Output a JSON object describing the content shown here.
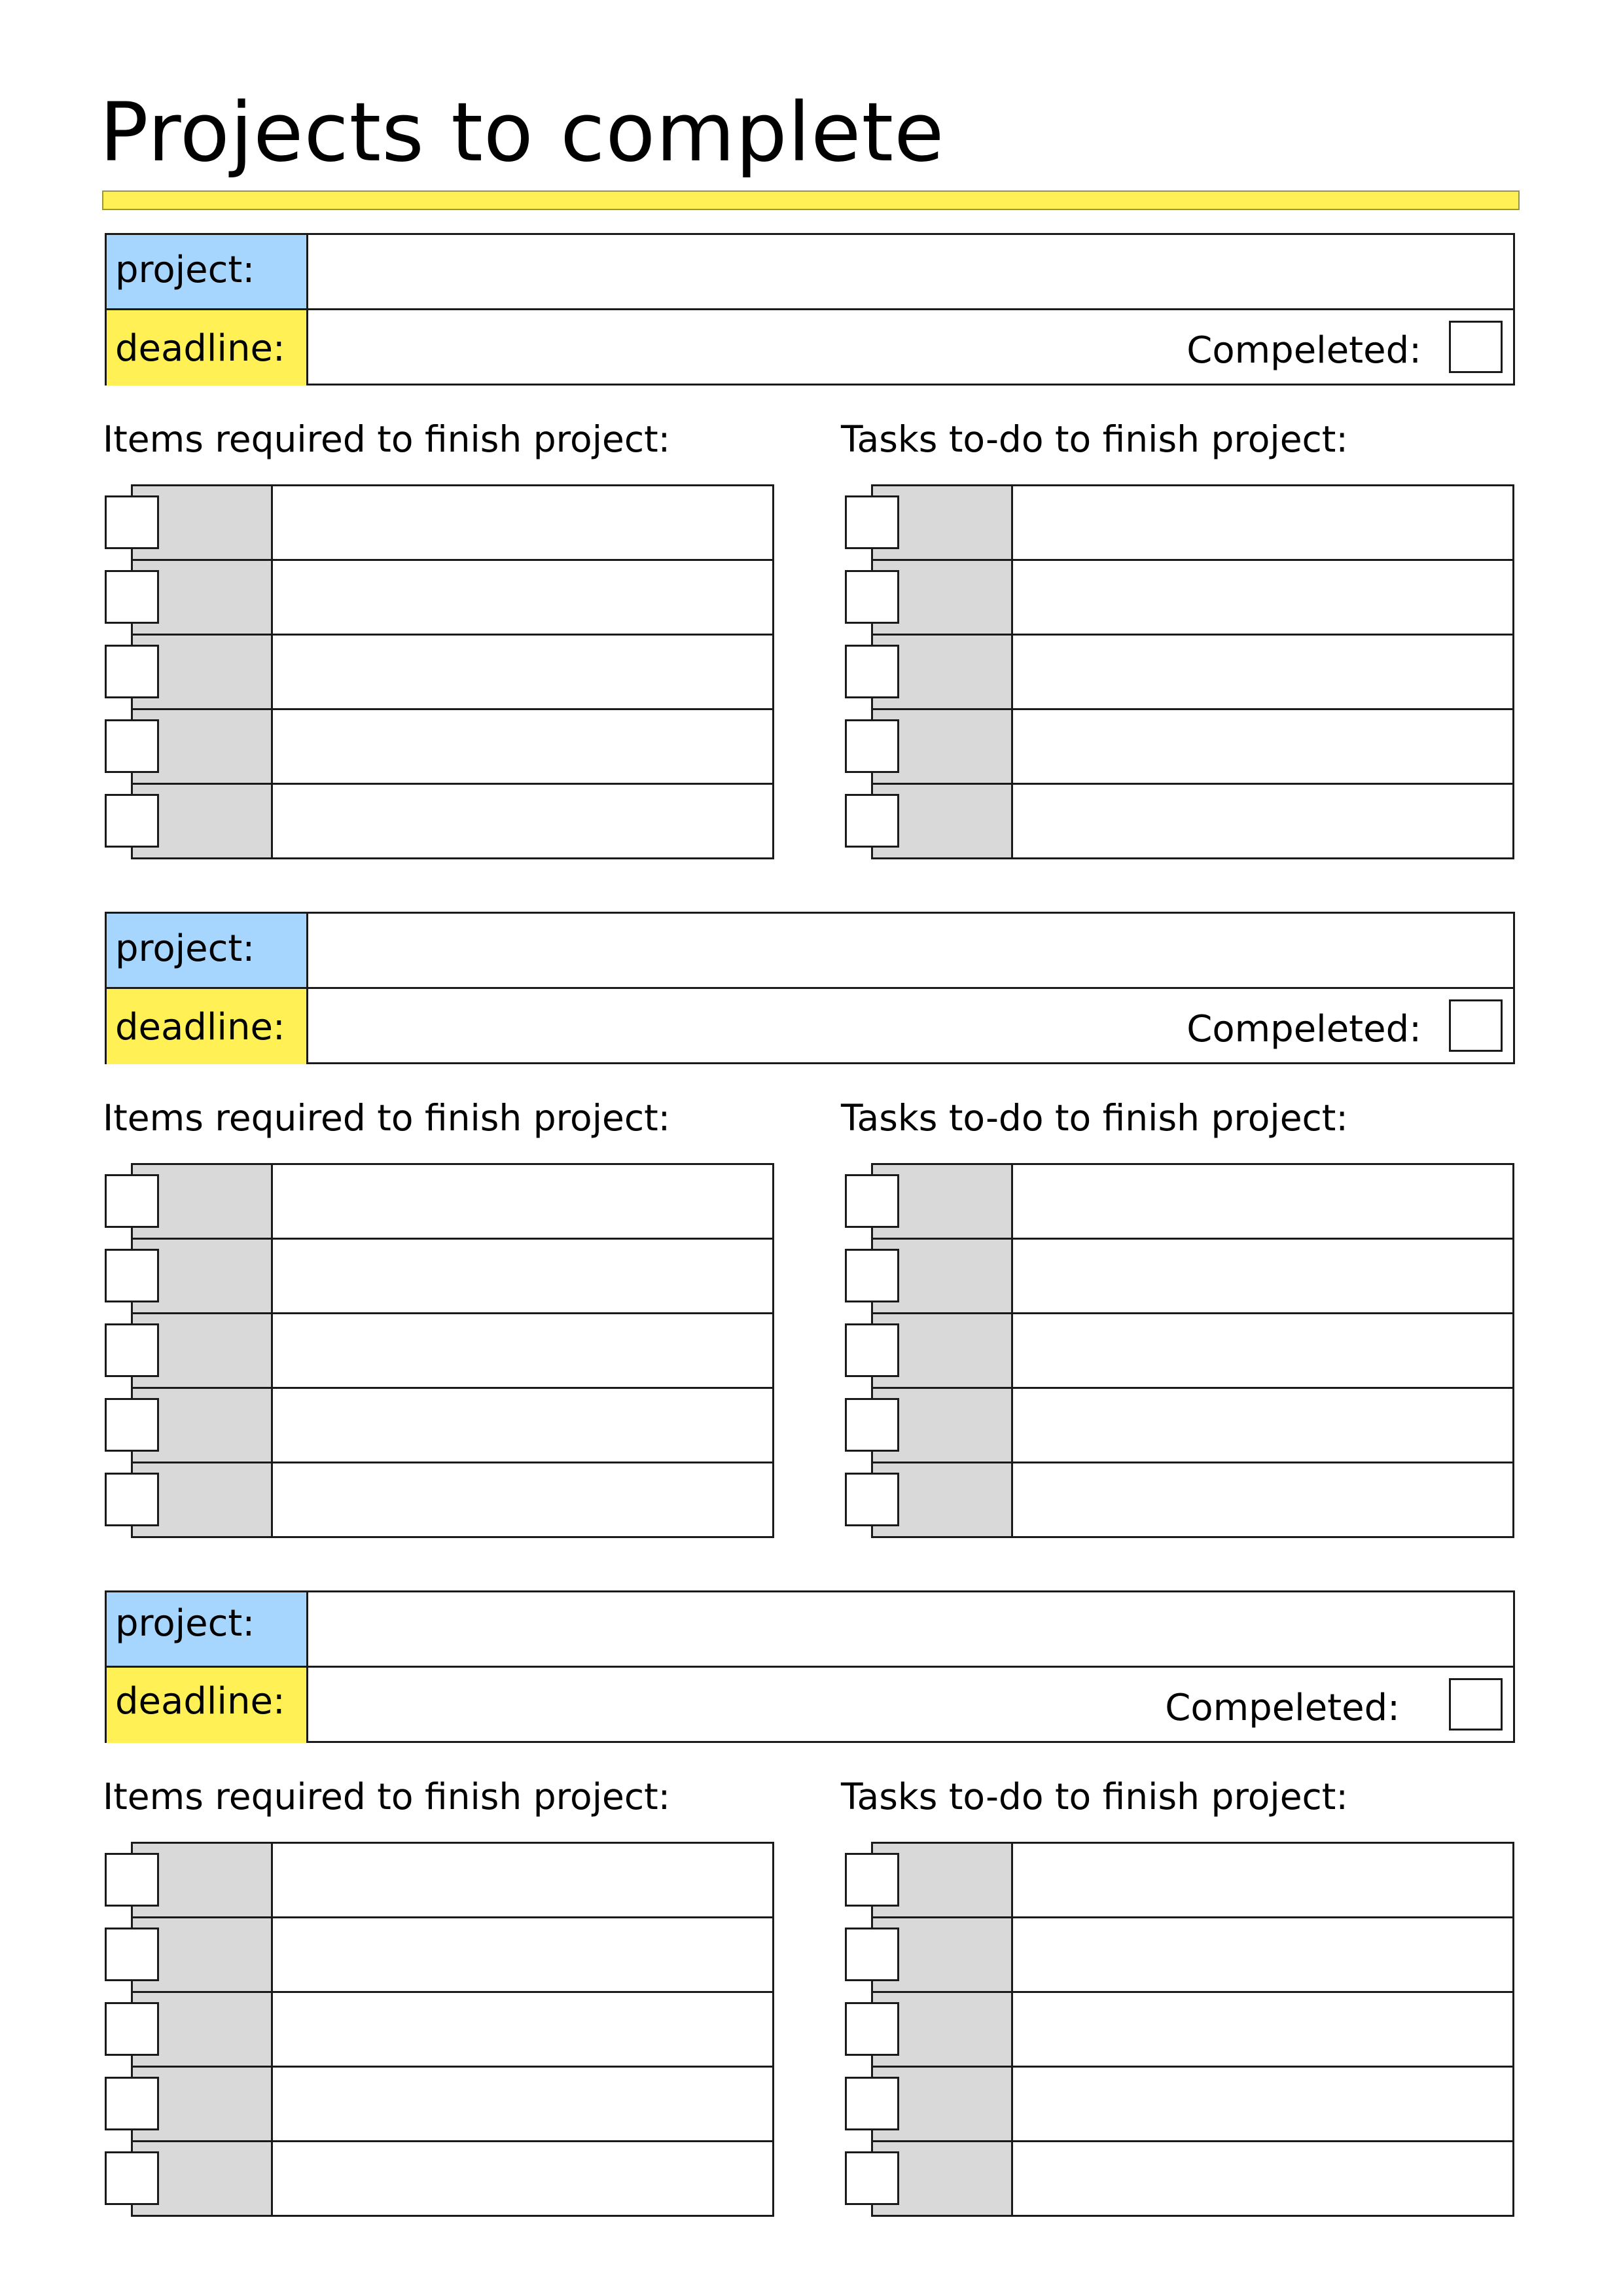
{
  "title": "Projects to complete",
  "colors": {
    "title_bar": "#fff056",
    "project_label_bg": "#a6d6fe",
    "deadline_label_bg": "#fff056",
    "list_gray": "#d9d9d9",
    "border": "#1a1a1a"
  },
  "blocks": [
    {
      "project_label": "project:",
      "project_value": "",
      "deadline_label": "deadline:",
      "deadline_value": "",
      "completed_label": "Compeleted:",
      "completed_checked": false,
      "items_heading": "Items required to finish project:",
      "tasks_heading": "Tasks to-do to finish project:",
      "items": [
        {
          "checked": false,
          "text": ""
        },
        {
          "checked": false,
          "text": ""
        },
        {
          "checked": false,
          "text": ""
        },
        {
          "checked": false,
          "text": ""
        },
        {
          "checked": false,
          "text": ""
        }
      ],
      "tasks": [
        {
          "checked": false,
          "text": ""
        },
        {
          "checked": false,
          "text": ""
        },
        {
          "checked": false,
          "text": ""
        },
        {
          "checked": false,
          "text": ""
        },
        {
          "checked": false,
          "text": ""
        }
      ]
    },
    {
      "project_label": "project:",
      "project_value": "",
      "deadline_label": "deadline:",
      "deadline_value": "",
      "completed_label": "Compeleted:",
      "completed_checked": false,
      "items_heading": "Items required to finish project:",
      "tasks_heading": "Tasks to-do to finish project:",
      "items": [
        {
          "checked": false,
          "text": ""
        },
        {
          "checked": false,
          "text": ""
        },
        {
          "checked": false,
          "text": ""
        },
        {
          "checked": false,
          "text": ""
        },
        {
          "checked": false,
          "text": ""
        }
      ],
      "tasks": [
        {
          "checked": false,
          "text": ""
        },
        {
          "checked": false,
          "text": ""
        },
        {
          "checked": false,
          "text": ""
        },
        {
          "checked": false,
          "text": ""
        },
        {
          "checked": false,
          "text": ""
        }
      ]
    },
    {
      "project_label": "project:",
      "project_value": "",
      "deadline_label": "deadline:",
      "deadline_value": "",
      "completed_label": "Compeleted:",
      "completed_checked": false,
      "items_heading": "Items required to finish project:",
      "tasks_heading": "Tasks to-do to finish project:",
      "items": [
        {
          "checked": false,
          "text": ""
        },
        {
          "checked": false,
          "text": ""
        },
        {
          "checked": false,
          "text": ""
        },
        {
          "checked": false,
          "text": ""
        },
        {
          "checked": false,
          "text": ""
        }
      ],
      "tasks": [
        {
          "checked": false,
          "text": ""
        },
        {
          "checked": false,
          "text": ""
        },
        {
          "checked": false,
          "text": ""
        },
        {
          "checked": false,
          "text": ""
        },
        {
          "checked": false,
          "text": ""
        }
      ]
    }
  ]
}
